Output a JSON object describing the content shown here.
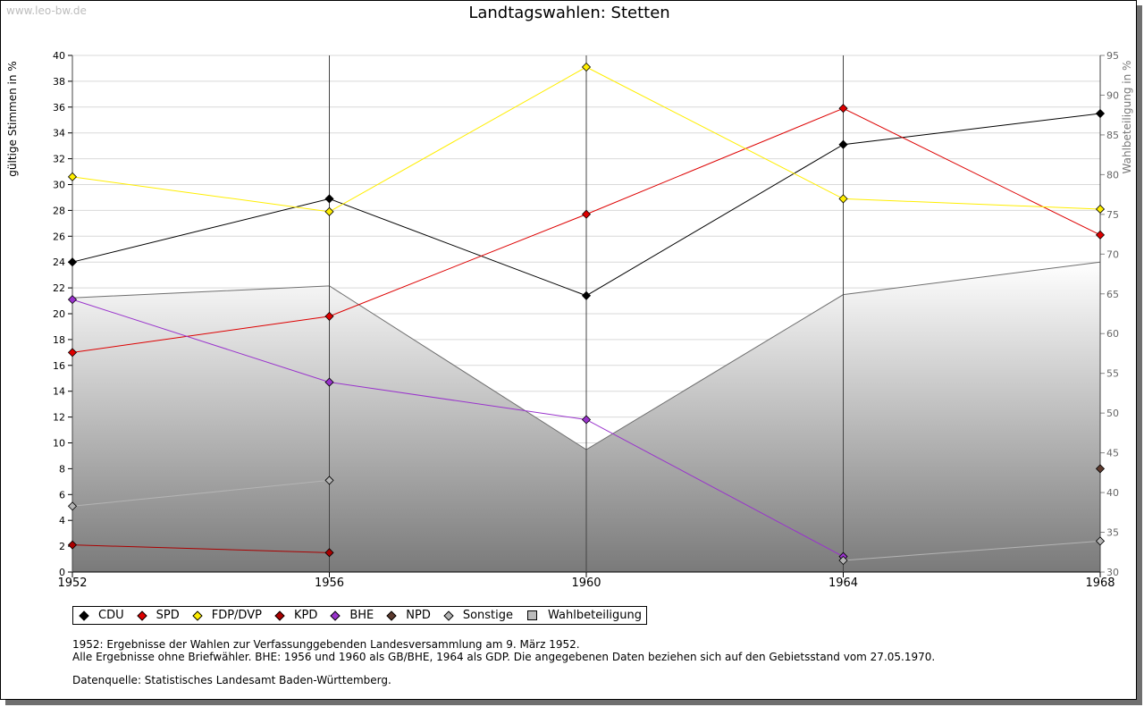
{
  "watermark": "www.leo-bw.de",
  "title": "Landtagswahlen: Stetten",
  "footnotes": {
    "line1": "1952: Ergebnisse der Wahlen zur Verfassunggebenden Landesversammlung am 9. März 1952.",
    "line2": "Alle Ergebnisse ohne Briefwähler. BHE: 1956 und 1960 als GB/BHE, 1964 als GDP. Die angegebenen Daten beziehen sich auf den Gebietsstand vom 27.05.1970.",
    "source": "Datenquelle: Statistisches Landesamt Baden-Württemberg."
  },
  "chart_data": {
    "type": "line",
    "title": "Landtagswahlen: Stetten",
    "x": [
      1952,
      1956,
      1960,
      1964,
      1968
    ],
    "ylabel": "gültige Stimmen in %",
    "y2label": "Wahlbeteiligung in %",
    "ylim": [
      0,
      40
    ],
    "y2lim": [
      30,
      95
    ],
    "yticks": [
      0,
      2,
      4,
      6,
      8,
      10,
      12,
      14,
      16,
      18,
      20,
      22,
      24,
      26,
      28,
      30,
      32,
      34,
      36,
      38,
      40
    ],
    "y2ticks": [
      30,
      35,
      40,
      45,
      50,
      55,
      60,
      65,
      70,
      75,
      80,
      85,
      90,
      95
    ],
    "grid": true,
    "legend_position": "bottom",
    "series": [
      {
        "name": "CDU",
        "color": "#000000",
        "values": [
          24.0,
          28.9,
          21.4,
          33.1,
          35.5
        ]
      },
      {
        "name": "SPD",
        "color": "#dd0000",
        "values": [
          17.0,
          19.8,
          27.7,
          35.9,
          26.1
        ]
      },
      {
        "name": "FDP/DVP",
        "color": "#ffee00",
        "values": [
          30.6,
          27.9,
          39.1,
          28.9,
          28.1
        ]
      },
      {
        "name": "KPD",
        "color": "#aa0000",
        "values": [
          2.1,
          1.5,
          null,
          null,
          null
        ]
      },
      {
        "name": "BHE",
        "color": "#9933cc",
        "values": [
          21.1,
          14.7,
          11.8,
          1.2,
          null
        ]
      },
      {
        "name": "NPD",
        "color": "#5c3a2e",
        "values": [
          null,
          null,
          null,
          null,
          8.0
        ]
      },
      {
        "name": "Sonstige",
        "color": "#b4b4b4",
        "values": [
          5.1,
          7.1,
          null,
          0.9,
          2.4
        ]
      }
    ],
    "area": {
      "name": "Wahlbeteiligung",
      "axis": "right",
      "values": [
        64.5,
        66.0,
        45.4,
        64.9,
        69.0
      ]
    }
  }
}
